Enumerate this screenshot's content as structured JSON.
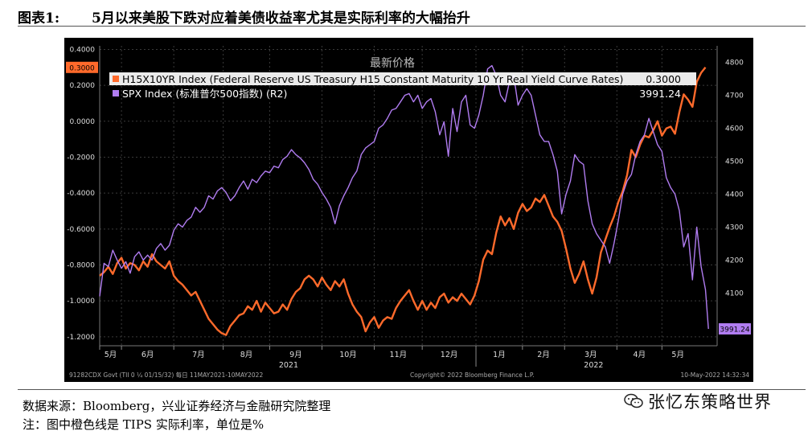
{
  "figure": {
    "label": "图表1:",
    "title": "5月以来美股下跌对应着美债收益率尤其是实际利率的大幅抬升"
  },
  "chart_data": {
    "type": "line",
    "legend_title": "最新价格",
    "series": [
      {
        "name": "H15X10YR Index (Federal Reserve US Treasury H15 Constant Maturity 10 Yr Real Yield Curve Rates)",
        "last_value_label": "0.3000",
        "color": "#ff6a2b",
        "axis": "left",
        "points": [
          [
            0,
            -0.86
          ],
          [
            3,
            -0.84
          ],
          [
            6,
            -0.81
          ],
          [
            9,
            -0.85
          ],
          [
            12,
            -0.79
          ],
          [
            15,
            -0.76
          ],
          [
            18,
            -0.82
          ],
          [
            21,
            -0.79
          ],
          [
            24,
            -0.8
          ],
          [
            27,
            -0.83
          ],
          [
            30,
            -0.78
          ],
          [
            33,
            -0.81
          ],
          [
            36,
            -0.74
          ],
          [
            39,
            -0.78
          ],
          [
            42,
            -0.8
          ],
          [
            45,
            -0.82
          ],
          [
            48,
            -0.78
          ],
          [
            51,
            -0.86
          ],
          [
            54,
            -0.89
          ],
          [
            57,
            -0.91
          ],
          [
            60,
            -0.94
          ],
          [
            63,
            -0.97
          ],
          [
            66,
            -0.95
          ],
          [
            69,
            -1.0
          ],
          [
            72,
            -1.05
          ],
          [
            75,
            -1.1
          ],
          [
            78,
            -1.13
          ],
          [
            81,
            -1.16
          ],
          [
            84,
            -1.18
          ],
          [
            87,
            -1.19
          ],
          [
            90,
            -1.14
          ],
          [
            93,
            -1.11
          ],
          [
            96,
            -1.08
          ],
          [
            99,
            -1.07
          ],
          [
            102,
            -1.03
          ],
          [
            105,
            -1.05
          ],
          [
            108,
            -1.0
          ],
          [
            111,
            -1.06
          ],
          [
            114,
            -1.01
          ],
          [
            117,
            -1.04
          ],
          [
            120,
            -1.07
          ],
          [
            123,
            -1.06
          ],
          [
            126,
            -1.02
          ],
          [
            129,
            -1.05
          ],
          [
            132,
            -0.99
          ],
          [
            135,
            -0.95
          ],
          [
            138,
            -0.93
          ],
          [
            141,
            -0.88
          ],
          [
            144,
            -0.86
          ],
          [
            147,
            -0.88
          ],
          [
            150,
            -0.92
          ],
          [
            153,
            -0.87
          ],
          [
            156,
            -0.91
          ],
          [
            159,
            -0.94
          ],
          [
            162,
            -0.89
          ],
          [
            165,
            -0.92
          ],
          [
            168,
            -0.88
          ],
          [
            171,
            -0.96
          ],
          [
            174,
            -1.02
          ],
          [
            177,
            -1.06
          ],
          [
            180,
            -1.09
          ],
          [
            183,
            -1.17
          ],
          [
            186,
            -1.12
          ],
          [
            189,
            -1.09
          ],
          [
            192,
            -1.15
          ],
          [
            195,
            -1.11
          ],
          [
            198,
            -1.09
          ],
          [
            201,
            -1.1
          ],
          [
            204,
            -1.04
          ],
          [
            207,
            -1.0
          ],
          [
            210,
            -0.97
          ],
          [
            213,
            -0.94
          ],
          [
            216,
            -1.0
          ],
          [
            219,
            -1.05
          ],
          [
            222,
            -1.0
          ],
          [
            225,
            -1.05
          ],
          [
            228,
            -1.01
          ],
          [
            231,
            -1.04
          ],
          [
            234,
            -0.98
          ],
          [
            237,
            -0.96
          ],
          [
            240,
            -1.01
          ],
          [
            243,
            -0.98
          ],
          [
            246,
            -1.0
          ],
          [
            249,
            -0.96
          ],
          [
            252,
            -0.99
          ],
          [
            255,
            -1.02
          ],
          [
            258,
            -0.97
          ],
          [
            261,
            -0.89
          ],
          [
            264,
            -0.77
          ],
          [
            267,
            -0.72
          ],
          [
            270,
            -0.74
          ],
          [
            273,
            -0.62
          ],
          [
            276,
            -0.53
          ],
          [
            279,
            -0.58
          ],
          [
            282,
            -0.54
          ],
          [
            285,
            -0.6
          ],
          [
            288,
            -0.51
          ],
          [
            291,
            -0.46
          ],
          [
            294,
            -0.5
          ],
          [
            297,
            -0.48
          ],
          [
            300,
            -0.43
          ],
          [
            303,
            -0.45
          ],
          [
            306,
            -0.41
          ],
          [
            309,
            -0.47
          ],
          [
            312,
            -0.53
          ],
          [
            315,
            -0.56
          ],
          [
            318,
            -0.61
          ],
          [
            321,
            -0.71
          ],
          [
            324,
            -0.82
          ],
          [
            327,
            -0.9
          ],
          [
            330,
            -0.85
          ],
          [
            333,
            -0.78
          ],
          [
            336,
            -0.88
          ],
          [
            339,
            -0.96
          ],
          [
            342,
            -0.87
          ],
          [
            345,
            -0.73
          ],
          [
            348,
            -0.66
          ],
          [
            351,
            -0.59
          ],
          [
            354,
            -0.53
          ],
          [
            357,
            -0.45
          ],
          [
            360,
            -0.39
          ],
          [
            363,
            -0.3
          ],
          [
            366,
            -0.16
          ],
          [
            369,
            -0.2
          ],
          [
            372,
            -0.13
          ],
          [
            375,
            -0.08
          ],
          [
            378,
            -0.09
          ],
          [
            381,
            -0.05
          ],
          [
            384,
            0.0
          ],
          [
            387,
            -0.08
          ],
          [
            390,
            -0.04
          ],
          [
            393,
            -0.03
          ],
          [
            396,
            -0.07
          ],
          [
            399,
            0.05
          ],
          [
            402,
            0.15
          ],
          [
            405,
            0.12
          ],
          [
            408,
            0.08
          ],
          [
            411,
            0.22
          ],
          [
            414,
            0.27
          ],
          [
            417,
            0.3
          ]
        ]
      },
      {
        "name": "SPX Index (标准普尔500指数) (R2)",
        "last_value_label": "3991.24",
        "color": "#b07cf0",
        "axis": "right",
        "points": [
          [
            0,
            4090
          ],
          [
            3,
            4190
          ],
          [
            6,
            4180
          ],
          [
            9,
            4230
          ],
          [
            12,
            4200
          ],
          [
            15,
            4175
          ],
          [
            18,
            4195
          ],
          [
            21,
            4160
          ],
          [
            24,
            4210
          ],
          [
            27,
            4225
          ],
          [
            30,
            4200
          ],
          [
            33,
            4215
          ],
          [
            36,
            4200
          ],
          [
            39,
            4235
          ],
          [
            42,
            4250
          ],
          [
            45,
            4230
          ],
          [
            48,
            4245
          ],
          [
            51,
            4290
          ],
          [
            54,
            4310
          ],
          [
            57,
            4300
          ],
          [
            60,
            4320
          ],
          [
            63,
            4330
          ],
          [
            66,
            4360
          ],
          [
            69,
            4345
          ],
          [
            72,
            4360
          ],
          [
            75,
            4395
          ],
          [
            78,
            4385
          ],
          [
            81,
            4410
          ],
          [
            84,
            4420
          ],
          [
            87,
            4405
          ],
          [
            90,
            4380
          ],
          [
            93,
            4395
          ],
          [
            96,
            4420
          ],
          [
            99,
            4440
          ],
          [
            102,
            4415
          ],
          [
            105,
            4445
          ],
          [
            108,
            4435
          ],
          [
            111,
            4455
          ],
          [
            114,
            4470
          ],
          [
            117,
            4465
          ],
          [
            120,
            4485
          ],
          [
            123,
            4480
          ],
          [
            126,
            4505
          ],
          [
            129,
            4515
          ],
          [
            132,
            4535
          ],
          [
            135,
            4520
          ],
          [
            138,
            4510
          ],
          [
            141,
            4495
          ],
          [
            144,
            4475
          ],
          [
            147,
            4445
          ],
          [
            150,
            4430
          ],
          [
            153,
            4405
          ],
          [
            156,
            4385
          ],
          [
            159,
            4360
          ],
          [
            162,
            4310
          ],
          [
            165,
            4365
          ],
          [
            168,
            4395
          ],
          [
            171,
            4420
          ],
          [
            174,
            4450
          ],
          [
            177,
            4470
          ],
          [
            180,
            4520
          ],
          [
            183,
            4540
          ],
          [
            186,
            4550
          ],
          [
            189,
            4560
          ],
          [
            192,
            4600
          ],
          [
            195,
            4610
          ],
          [
            198,
            4630
          ],
          [
            201,
            4655
          ],
          [
            204,
            4660
          ],
          [
            207,
            4680
          ],
          [
            210,
            4700
          ],
          [
            213,
            4705
          ],
          [
            216,
            4680
          ],
          [
            219,
            4700
          ],
          [
            222,
            4660
          ],
          [
            225,
            4680
          ],
          [
            228,
            4690
          ],
          [
            231,
            4650
          ],
          [
            234,
            4580
          ],
          [
            237,
            4620
          ],
          [
            240,
            4515
          ],
          [
            243,
            4660
          ],
          [
            246,
            4590
          ],
          [
            249,
            4680
          ],
          [
            252,
            4700
          ],
          [
            255,
            4610
          ],
          [
            258,
            4600
          ],
          [
            261,
            4640
          ],
          [
            264,
            4700
          ],
          [
            267,
            4780
          ],
          [
            270,
            4790
          ],
          [
            273,
            4760
          ],
          [
            276,
            4700
          ],
          [
            279,
            4680
          ],
          [
            282,
            4740
          ],
          [
            285,
            4760
          ],
          [
            288,
            4670
          ],
          [
            291,
            4700
          ],
          [
            294,
            4720
          ],
          [
            297,
            4700
          ],
          [
            300,
            4640
          ],
          [
            303,
            4580
          ],
          [
            306,
            4560
          ],
          [
            309,
            4560
          ],
          [
            312,
            4520
          ],
          [
            315,
            4470
          ],
          [
            318,
            4340
          ],
          [
            321,
            4400
          ],
          [
            324,
            4440
          ],
          [
            327,
            4520
          ],
          [
            330,
            4500
          ],
          [
            333,
            4490
          ],
          [
            336,
            4380
          ],
          [
            339,
            4310
          ],
          [
            342,
            4280
          ],
          [
            345,
            4260
          ],
          [
            348,
            4240
          ],
          [
            351,
            4190
          ],
          [
            354,
            4250
          ],
          [
            357,
            4320
          ],
          [
            360,
            4400
          ],
          [
            363,
            4440
          ],
          [
            366,
            4460
          ],
          [
            369,
            4520
          ],
          [
            372,
            4560
          ],
          [
            375,
            4580
          ],
          [
            378,
            4630
          ],
          [
            381,
            4590
          ],
          [
            384,
            4550
          ],
          [
            387,
            4530
          ],
          [
            390,
            4450
          ],
          [
            393,
            4420
          ],
          [
            396,
            4400
          ],
          [
            399,
            4350
          ],
          [
            402,
            4240
          ],
          [
            405,
            4280
          ],
          [
            408,
            4140
          ],
          [
            411,
            4300
          ],
          [
            414,
            4180
          ],
          [
            417,
            4110
          ],
          [
            419,
            3991
          ]
        ]
      }
    ],
    "y_left": {
      "range": [
        -1.25,
        0.42
      ],
      "ticks": [
        "0.4000",
        "0.2000",
        "0.0000",
        "-0.2000",
        "-0.4000",
        "-0.6000",
        "-0.8000",
        "-1.0000",
        "-1.2000"
      ],
      "current_badge": "0.3000"
    },
    "y_right": {
      "range": [
        3940,
        4850
      ],
      "ticks": [
        "4800",
        "4700",
        "4600",
        "4500",
        "4400",
        "4300",
        "4200",
        "4100"
      ],
      "current_badge": "3991.24"
    },
    "x_axis": {
      "months": [
        "5月",
        "6月",
        "7月",
        "8月",
        "9月",
        "10月",
        "11月",
        "12月",
        "1月",
        "2月",
        "3月",
        "4月",
        "5月"
      ],
      "years": [
        "2021",
        "2022"
      ]
    },
    "grid": true
  },
  "bottom_bar": {
    "left": "91282CDX Govt (TII 0 ¼ 01/15/32)  每日 11MAY2021-10MAY2022",
    "center": "Copyright© 2022 Bloomberg Finance L.P.",
    "right": "10-May-2022 14:32:34"
  },
  "notes": {
    "source": "数据来源：Bloomberg，兴业证券经济与金融研究院整理",
    "remark": "注：图中橙色线是 TIPS 实际利率，单位是%"
  },
  "watermark": "张忆东策略世界"
}
